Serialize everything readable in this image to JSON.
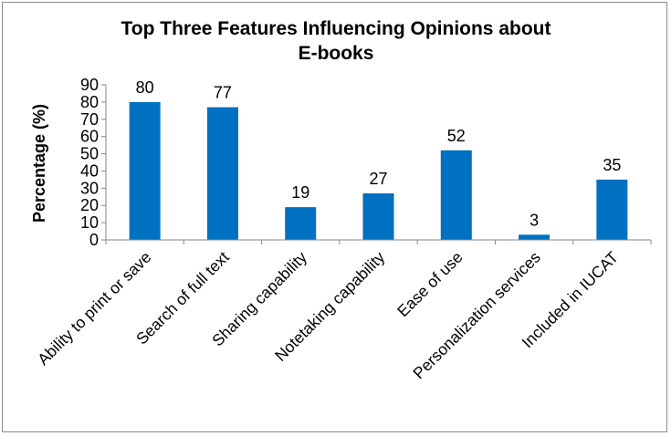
{
  "chart_data": {
    "type": "bar",
    "title_lines": [
      "Top Three Features Influencing  Opinions about",
      "E-books"
    ],
    "xlabel": "",
    "ylabel": "Percentage (%)",
    "ylim": [
      0,
      90
    ],
    "yticks": [
      "0",
      "10",
      "20",
      "30",
      "40",
      "50",
      "60",
      "70",
      "80",
      "90"
    ],
    "categories": [
      "Ability to print or save",
      "Search of full text",
      "Sharing capability",
      "Notetaking capability",
      "Ease of use",
      "Personalization services",
      "Included in IUCAT"
    ],
    "values": [
      80,
      77,
      19,
      27,
      52,
      3,
      35
    ],
    "value_labels": [
      "80",
      "77",
      "19",
      "27",
      "52",
      "3",
      "35"
    ],
    "bar_color": "#0070c0",
    "grid": false,
    "legend": "none"
  }
}
